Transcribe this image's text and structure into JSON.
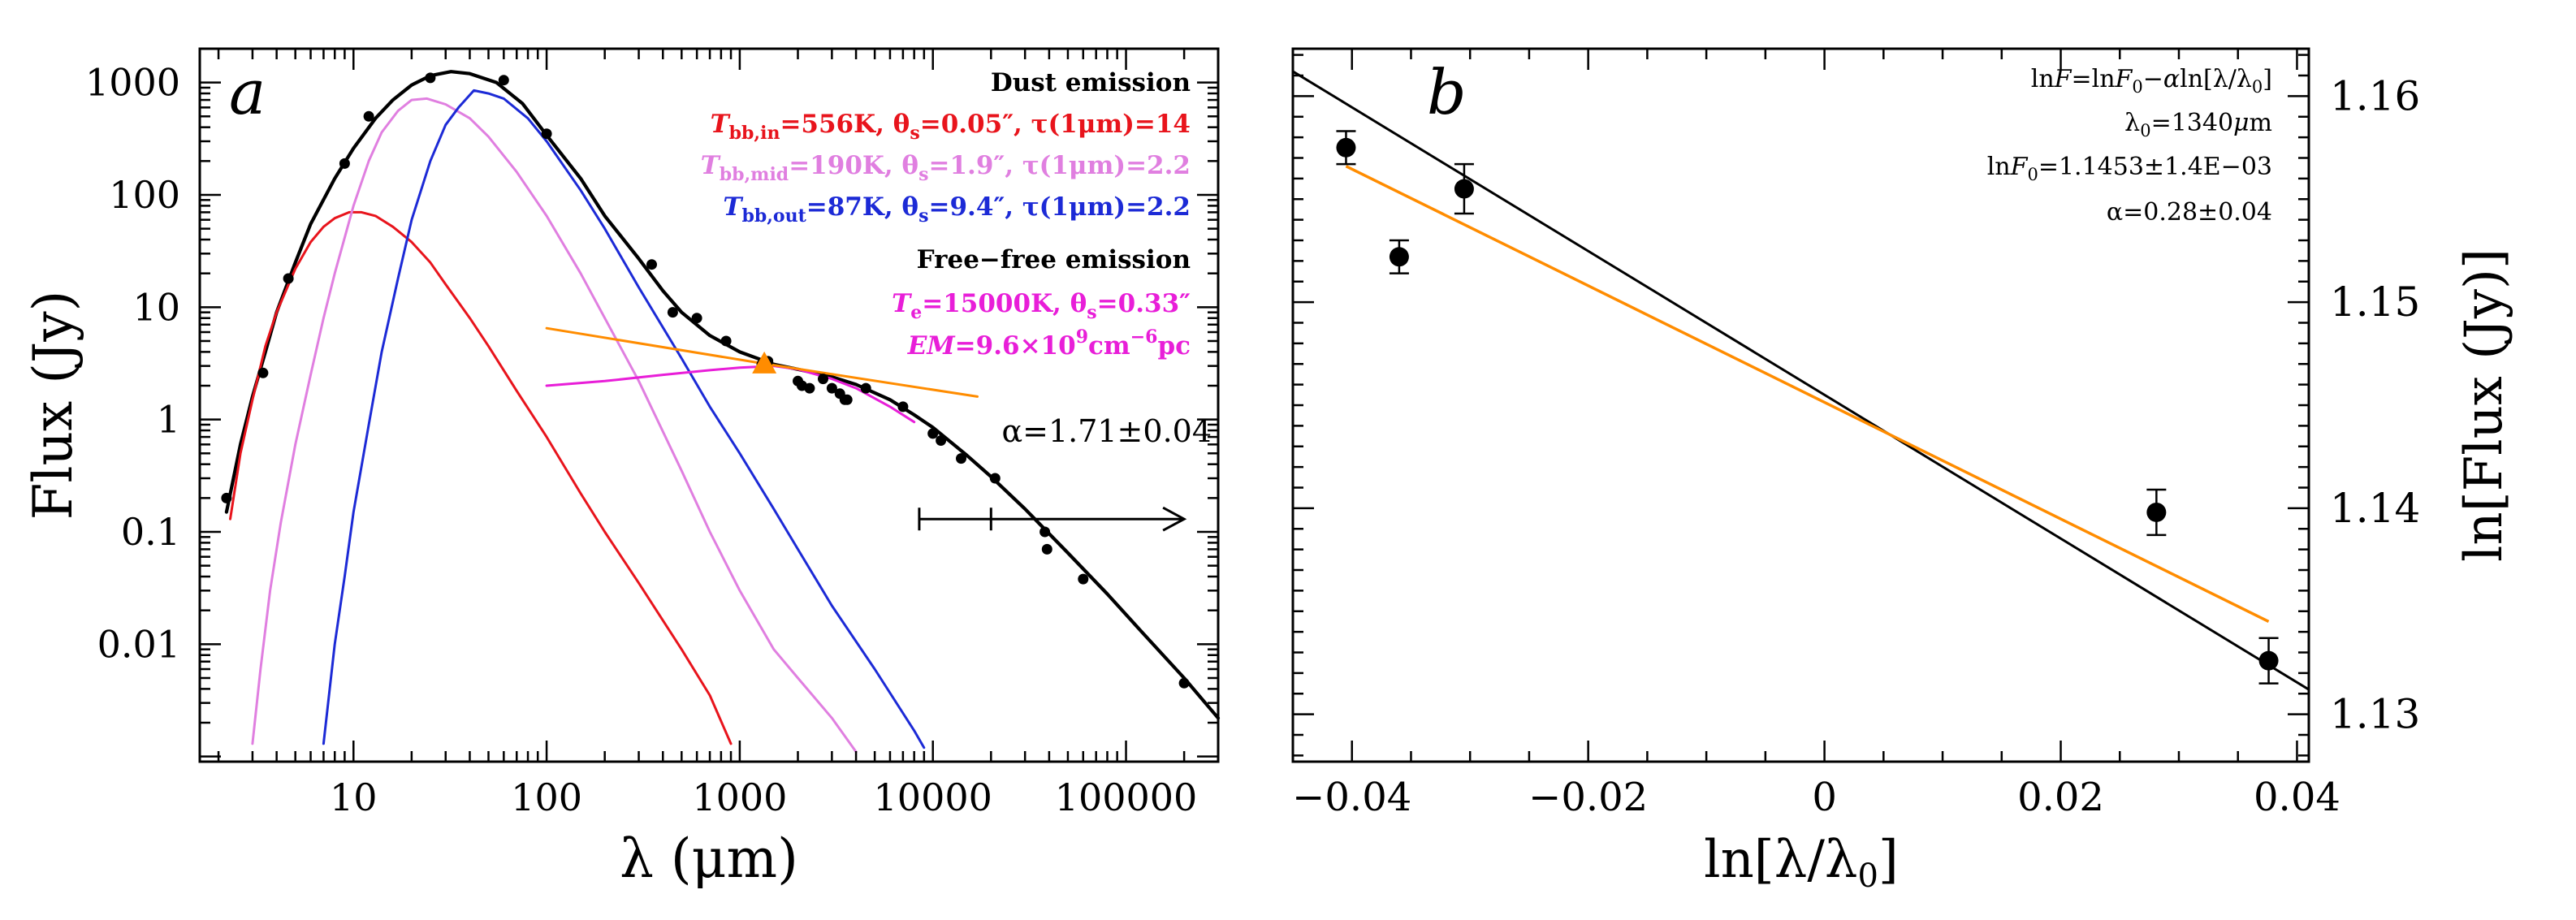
{
  "chart_data": [
    {
      "type": "line",
      "panel_label": "a",
      "xlabel": "λ (μm)",
      "ylabel": "Flux (Jy)",
      "xscale": "log",
      "yscale": "log",
      "xlim": [
        1.6,
        300000
      ],
      "ylim": [
        0.0009,
        2000
      ],
      "x_ticks": [
        10,
        100,
        1000,
        10000,
        100000
      ],
      "x_tick_labels": [
        "10",
        "100",
        "1000",
        "10000",
        "100000"
      ],
      "y_ticks": [
        0.01,
        0.1,
        1,
        10,
        100,
        1000
      ],
      "y_tick_labels": [
        "0.01",
        "0.1",
        "1",
        "10",
        "100",
        "1000"
      ],
      "legend": {
        "position": "top-right",
        "dust_title": "Dust emission",
        "inner": {
          "label": "T",
          "sub": "bb,in",
          "text": "=556K, θ",
          "sub2": "s",
          "text2": "=0.05″, τ(1μm)=14",
          "color": "#e8141c"
        },
        "middle": {
          "label": "T",
          "sub": "bb,mid",
          "text": "=190K, θ",
          "sub2": "s",
          "text2": "=1.9″, τ(1μm)=2.2",
          "color": "#e07fe0"
        },
        "outer": {
          "label": "T",
          "sub": "bb,out",
          "text": "=87K, θ",
          "sub2": "s",
          "text2": "=9.4″, τ(1μm)=2.2",
          "color": "#1c2ad6"
        },
        "ff_title": "Free−free emission",
        "ff1": {
          "label": "T",
          "sub": "e",
          "text": "=15000K, θ",
          "sub2": "s",
          "text2": "=0.33″",
          "color": "#e81ed8"
        },
        "ff2": {
          "label": "EM",
          "text": "=9.6×10",
          "sup": "9",
          "text2": "cm",
          "sup2": "−6",
          "text3": "pc",
          "color": "#e81ed8"
        }
      },
      "annotation_alpha": "α=1.71±0.04",
      "arrow": {
        "x_start": 8500,
        "x_end": 200000,
        "y": 0.13,
        "tick_x": 20000
      },
      "points": [
        [
          2.2,
          0.2
        ],
        [
          3.4,
          2.6
        ],
        [
          4.6,
          18
        ],
        [
          9,
          190
        ],
        [
          12,
          500
        ],
        [
          25,
          1100
        ],
        [
          60,
          1050
        ],
        [
          100,
          350
        ],
        [
          350,
          24
        ],
        [
          450,
          9
        ],
        [
          600,
          8
        ],
        [
          850,
          5
        ],
        [
          1300,
          3.1
        ],
        [
          1400,
          3.3
        ],
        [
          2000,
          2.2
        ],
        [
          2100,
          2.0
        ],
        [
          2300,
          1.9
        ],
        [
          2700,
          2.3
        ],
        [
          3000,
          1.9
        ],
        [
          3300,
          1.7
        ],
        [
          3500,
          1.5
        ],
        [
          3600,
          1.5
        ],
        [
          4500,
          1.9
        ],
        [
          7000,
          1.3
        ],
        [
          10000,
          0.75
        ],
        [
          11000,
          0.65
        ],
        [
          14000,
          0.45
        ],
        [
          21000,
          0.3
        ],
        [
          38000,
          0.1
        ],
        [
          39000,
          0.07
        ],
        [
          60000,
          0.038
        ],
        [
          200000,
          0.0045
        ]
      ],
      "series": [
        {
          "name": "total",
          "color": "#000000",
          "width": 4.2,
          "points": [
            [
              2.2,
              0.15
            ],
            [
              2.6,
              0.6
            ],
            [
              3,
              1.6
            ],
            [
              3.5,
              4
            ],
            [
              4,
              9
            ],
            [
              5,
              25
            ],
            [
              6,
              55
            ],
            [
              8,
              140
            ],
            [
              10,
              260
            ],
            [
              13,
              480
            ],
            [
              16,
              700
            ],
            [
              20,
              950
            ],
            [
              25,
              1150
            ],
            [
              32,
              1250
            ],
            [
              40,
              1200
            ],
            [
              55,
              1000
            ],
            [
              75,
              650
            ],
            [
              100,
              340
            ],
            [
              150,
              140
            ],
            [
              200,
              65
            ],
            [
              300,
              27
            ],
            [
              400,
              14
            ],
            [
              500,
              9
            ],
            [
              700,
              5.6
            ],
            [
              1000,
              4
            ],
            [
              1500,
              3.1
            ],
            [
              2000,
              2.8
            ],
            [
              3000,
              2.4
            ],
            [
              4000,
              2.05
            ],
            [
              6000,
              1.5
            ],
            [
              8000,
              1.1
            ],
            [
              10000,
              0.85
            ],
            [
              15000,
              0.48
            ],
            [
              20000,
              0.31
            ],
            [
              30000,
              0.16
            ],
            [
              50000,
              0.065
            ],
            [
              80000,
              0.028
            ],
            [
              120000,
              0.013
            ],
            [
              200000,
              0.005
            ],
            [
              300000,
              0.0022
            ]
          ]
        },
        {
          "name": "inner",
          "color": "#e8141c",
          "width": 3,
          "points": [
            [
              2.3,
              0.13
            ],
            [
              2.6,
              0.5
            ],
            [
              3,
              1.5
            ],
            [
              3.5,
              4.5
            ],
            [
              4,
              9
            ],
            [
              5,
              22
            ],
            [
              6,
              38
            ],
            [
              7,
              52
            ],
            [
              8,
              62
            ],
            [
              9.5,
              70
            ],
            [
              11,
              70
            ],
            [
              13,
              65
            ],
            [
              16,
              52
            ],
            [
              20,
              38
            ],
            [
              25,
              25
            ],
            [
              30,
              16
            ],
            [
              40,
              8
            ],
            [
              50,
              4.5
            ],
            [
              70,
              1.8
            ],
            [
              100,
              0.7
            ],
            [
              150,
              0.22
            ],
            [
              200,
              0.1
            ],
            [
              300,
              0.035
            ],
            [
              500,
              0.009
            ],
            [
              700,
              0.0035
            ],
            [
              900,
              0.0013
            ]
          ]
        },
        {
          "name": "middle",
          "color": "#e07fe0",
          "width": 3,
          "points": [
            [
              3,
              0.0013
            ],
            [
              3.3,
              0.006
            ],
            [
              3.7,
              0.03
            ],
            [
              4.2,
              0.12
            ],
            [
              5,
              0.6
            ],
            [
              6,
              2.5
            ],
            [
              7,
              8
            ],
            [
              8,
              20
            ],
            [
              10,
              80
            ],
            [
              12,
              200
            ],
            [
              14,
              360
            ],
            [
              17,
              560
            ],
            [
              20,
              700
            ],
            [
              24,
              720
            ],
            [
              30,
              640
            ],
            [
              40,
              480
            ],
            [
              50,
              330
            ],
            [
              70,
              160
            ],
            [
              100,
              65
            ],
            [
              150,
              20
            ],
            [
              200,
              8
            ],
            [
              300,
              2.2
            ],
            [
              500,
              0.35
            ],
            [
              700,
              0.1
            ],
            [
              1000,
              0.03
            ],
            [
              1500,
              0.009
            ],
            [
              2000,
              0.005
            ],
            [
              3000,
              0.0022
            ],
            [
              4000,
              0.0011
            ]
          ]
        },
        {
          "name": "outer",
          "color": "#1c2ad6",
          "width": 3,
          "points": [
            [
              7,
              0.0013
            ],
            [
              8,
              0.01
            ],
            [
              9,
              0.04
            ],
            [
              10,
              0.15
            ],
            [
              12,
              0.9
            ],
            [
              14,
              4
            ],
            [
              17,
              18
            ],
            [
              20,
              60
            ],
            [
              25,
              200
            ],
            [
              30,
              420
            ],
            [
              35,
              600
            ],
            [
              42,
              850
            ],
            [
              50,
              800
            ],
            [
              60,
              720
            ],
            [
              80,
              480
            ],
            [
              100,
              300
            ],
            [
              150,
              110
            ],
            [
              200,
              50
            ],
            [
              300,
              15
            ],
            [
              500,
              3.5
            ],
            [
              700,
              1.3
            ],
            [
              1000,
              0.5
            ],
            [
              1500,
              0.16
            ],
            [
              2000,
              0.07
            ],
            [
              3000,
              0.022
            ],
            [
              5000,
              0.006
            ],
            [
              8000,
              0.0017
            ],
            [
              9000,
              0.0012
            ]
          ]
        },
        {
          "name": "free-free",
          "color": "#e81ed8",
          "width": 3,
          "points": [
            [
              100,
              2.0
            ],
            [
              200,
              2.2
            ],
            [
              400,
              2.5
            ],
            [
              700,
              2.75
            ],
            [
              1000,
              2.9
            ],
            [
              1500,
              3.0
            ],
            [
              2000,
              2.8
            ],
            [
              3000,
              2.3
            ],
            [
              4000,
              1.9
            ],
            [
              6000,
              1.3
            ],
            [
              8000,
              0.95
            ]
          ]
        },
        {
          "name": "fit",
          "color": "#ff8c00",
          "width": 3,
          "points": [
            [
              100,
              6.5
            ],
            [
              1340,
              3.14
            ],
            [
              17000,
              1.6
            ]
          ]
        }
      ],
      "marker": {
        "x": 1340,
        "y": 3.14,
        "color": "#ff8c00"
      }
    },
    {
      "type": "scatter",
      "panel_label": "b",
      "xlabel": "ln[λ/λ",
      "xlabel_sub": "0",
      "xlabel_end": "]",
      "ylabel": "ln[Flux (Jy)]",
      "xlim": [
        -0.045,
        0.041
      ],
      "ylim": [
        1.1277,
        1.1623
      ],
      "x_ticks": [
        -0.04,
        -0.02,
        0,
        0.02,
        0.04
      ],
      "x_tick_labels": [
        "−0.04",
        "−0.02",
        "0",
        "0.02",
        "0.04"
      ],
      "y_ticks": [
        1.13,
        1.14,
        1.15,
        1.16
      ],
      "y_tick_labels": [
        "1.13",
        "1.14",
        "1.15",
        "1.16"
      ],
      "legend": {
        "position": "top-right",
        "line1": {
          "a": "ln",
          "b": "F",
          "c": "=ln",
          "d": "F",
          "sub": "0",
          "e": "−",
          "f": "α",
          "g": "ln[λ/λ",
          "sub2": "0",
          "h": "]"
        },
        "line2": {
          "a": "λ",
          "sub": "0",
          "b": "=1340",
          "c": "μ",
          "d": "m"
        },
        "line3": {
          "a": "ln",
          "b": "F",
          "sub": "0",
          "c": "=1.1453±1.4E−03"
        },
        "line4": "α=0.28±0.04"
      },
      "points": [
        {
          "x": -0.0405,
          "y": 1.1575,
          "err": 0.0008
        },
        {
          "x": -0.036,
          "y": 1.1522,
          "err": 0.0008
        },
        {
          "x": -0.0305,
          "y": 1.1555,
          "err": 0.0012
        },
        {
          "x": 0.0281,
          "y": 1.1398,
          "err": 0.0011
        },
        {
          "x": 0.0376,
          "y": 1.1326,
          "err": 0.0011
        }
      ],
      "series": [
        {
          "name": "black-fit",
          "color": "#000000",
          "width": 3,
          "x": [
            -0.045,
            0.041
          ],
          "y": [
            1.1612,
            1.1312
          ]
        },
        {
          "name": "orange-fit",
          "color": "#ff8c00",
          "width": 3.5,
          "x": [
            -0.0405,
            0.0376
          ],
          "y": [
            1.1566,
            1.1345
          ]
        }
      ]
    }
  ]
}
